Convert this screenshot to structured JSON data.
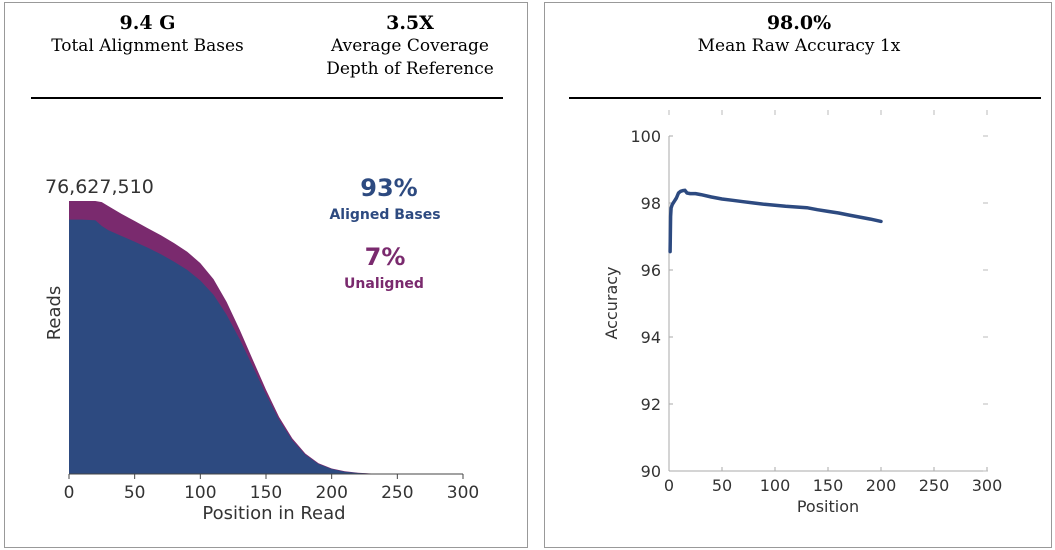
{
  "left_panel": {
    "stats": [
      {
        "value": "9.4 G",
        "label_lines": [
          "Total Alignment Bases"
        ]
      },
      {
        "value": "3.5X",
        "label_lines": [
          "Average Coverage",
          "Depth of Reference"
        ]
      }
    ],
    "pct_aligned": "93%",
    "pct_aligned_label": "Aligned Bases",
    "pct_unaligned": "7%",
    "pct_unaligned_label": "Unaligned",
    "max_reads_label": "76,627,510"
  },
  "right_panel": {
    "stats": [
      {
        "value": "98.0%",
        "label_lines": [
          "Mean Raw Accuracy 1x"
        ]
      }
    ]
  },
  "colors": {
    "aligned": "#2d4a80",
    "unaligned": "#7a2a6e",
    "accuracy_line": "#2d4a80"
  },
  "chart_data": [
    {
      "type": "area",
      "stacked": true,
      "xlabel": "Position in Read",
      "ylabel": "Reads",
      "xlim": [
        0,
        300
      ],
      "ylim": [
        0,
        76627510
      ],
      "x_ticks": [
        0,
        50,
        100,
        150,
        200,
        250,
        300
      ],
      "grid": false,
      "series": [
        {
          "name": "Aligned Bases",
          "x": [
            0,
            10,
            20,
            25,
            30,
            40,
            50,
            60,
            70,
            80,
            90,
            100,
            110,
            120,
            130,
            140,
            150,
            160,
            170,
            180,
            190,
            200,
            210,
            220,
            230,
            240,
            250,
            260,
            270,
            280
          ],
          "values": [
            71400000,
            71400000,
            71250000,
            69600000,
            68400000,
            66800000,
            65200000,
            63500000,
            61700000,
            59600000,
            57300000,
            54300000,
            50300000,
            44700000,
            37800000,
            30100000,
            22400000,
            15200000,
            9500000,
            5400000,
            2800000,
            1400000,
            650000,
            290000,
            110000,
            45000,
            15000,
            5000,
            0,
            0
          ]
        },
        {
          "name": "Unaligned",
          "x": [
            0,
            10,
            20,
            25,
            30,
            40,
            50,
            60,
            70,
            80,
            90,
            100,
            110,
            120,
            130,
            140,
            150,
            160,
            170,
            180,
            190,
            200,
            210,
            220,
            230,
            240,
            250,
            260,
            270,
            280
          ],
          "values": [
            5227510,
            5227510,
            5377510,
            6727510,
            6800000,
            6200000,
            5800000,
            5500000,
            5300000,
            5200000,
            5100000,
            4900000,
            4400000,
            3600000,
            2700000,
            1900000,
            1250000,
            800000,
            500000,
            320000,
            210000,
            150000,
            100000,
            70000,
            40000,
            20000,
            8000,
            3000,
            0,
            0
          ]
        }
      ]
    },
    {
      "type": "line",
      "xlabel": "Position",
      "ylabel": "Accuracy",
      "xlim": [
        0,
        300
      ],
      "ylim": [
        90,
        100
      ],
      "x_ticks": [
        0,
        50,
        100,
        150,
        200,
        250,
        300
      ],
      "y_ticks": [
        90,
        92,
        94,
        96,
        98,
        100
      ],
      "grid": false,
      "series": [
        {
          "x": [
            1,
            1.5,
            2,
            3,
            4,
            5,
            7,
            9,
            11,
            13,
            15,
            17,
            20,
            25,
            30,
            40,
            50,
            60,
            70,
            80,
            90,
            100,
            110,
            120,
            130,
            140,
            150,
            160,
            170,
            180,
            190,
            200
          ],
          "values": [
            96.55,
            97.6,
            97.85,
            97.95,
            98.0,
            98.05,
            98.15,
            98.3,
            98.35,
            98.37,
            98.38,
            98.3,
            98.28,
            98.28,
            98.25,
            98.18,
            98.12,
            98.08,
            98.04,
            98.0,
            97.96,
            97.93,
            97.9,
            97.88,
            97.86,
            97.8,
            97.75,
            97.7,
            97.64,
            97.58,
            97.52,
            97.45
          ]
        }
      ]
    }
  ]
}
